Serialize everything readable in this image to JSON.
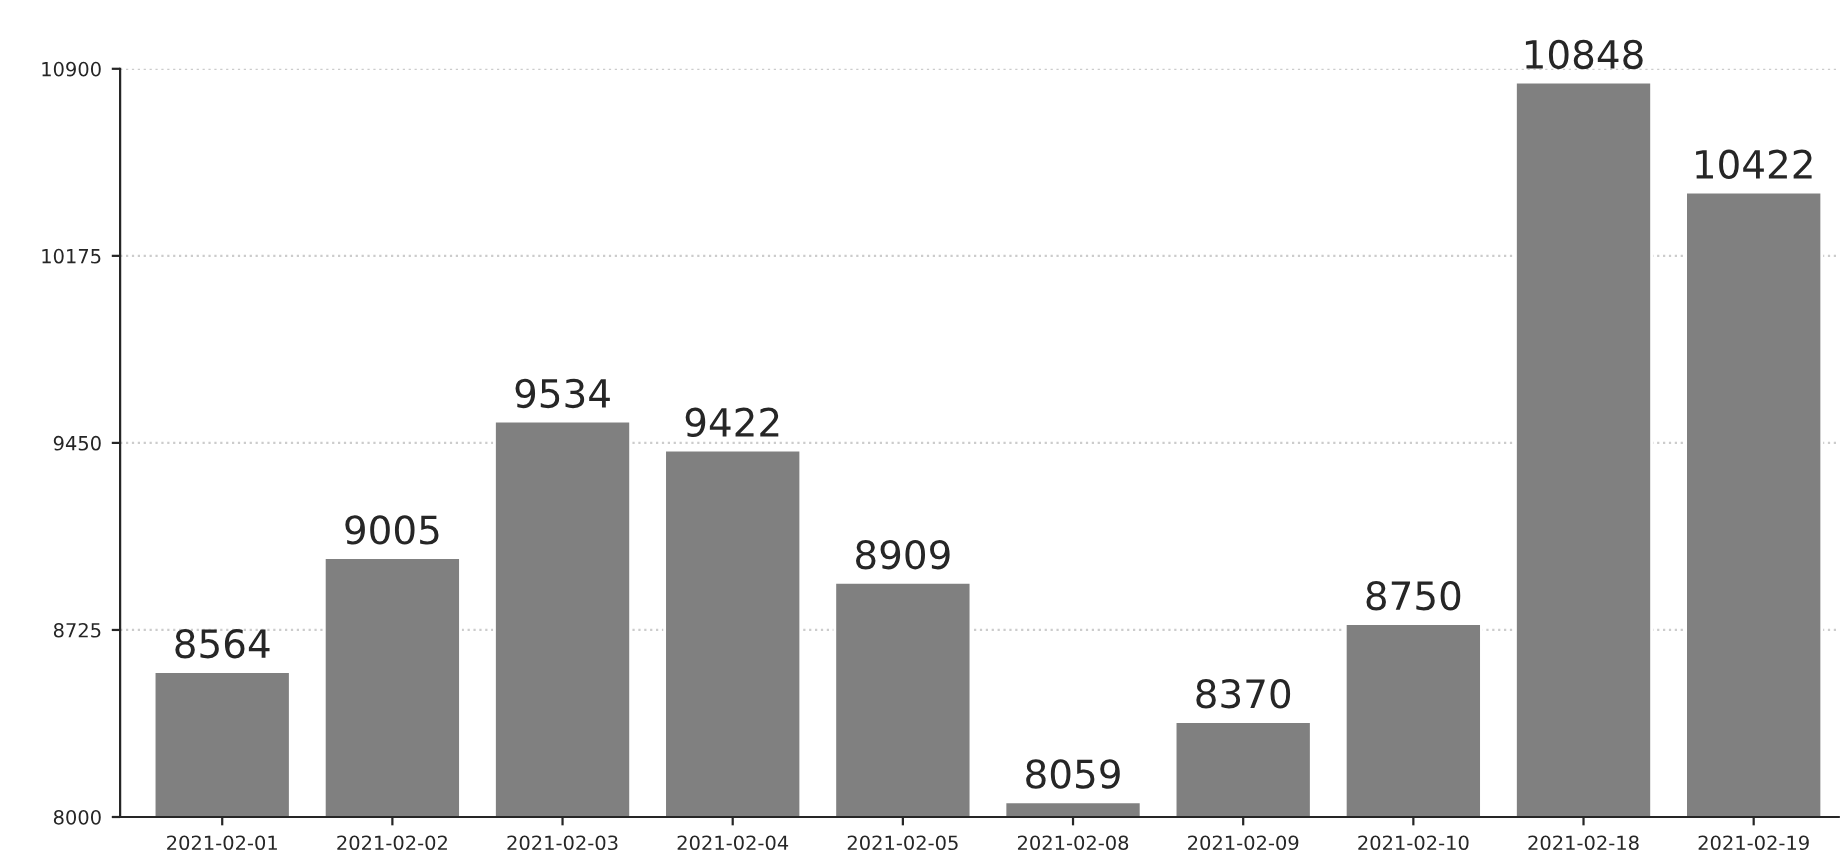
{
  "chart_data": {
    "type": "bar",
    "categories": [
      "2021-02-01",
      "2021-02-02",
      "2021-02-03",
      "2021-02-04",
      "2021-02-05",
      "2021-02-08",
      "2021-02-09",
      "2021-02-10",
      "2021-02-18",
      "2021-02-19"
    ],
    "series": [
      {
        "color": "#808080",
        "values": [
          8564,
          9005,
          9534,
          9422,
          8909,
          8059,
          8370,
          8750,
          10848,
          10422
        ]
      }
    ],
    "ylim": [
      8000,
      10900
    ],
    "yticks": [
      8000,
      8725,
      9450,
      10175,
      10900
    ],
    "grid": "y",
    "data_labels": true
  }
}
